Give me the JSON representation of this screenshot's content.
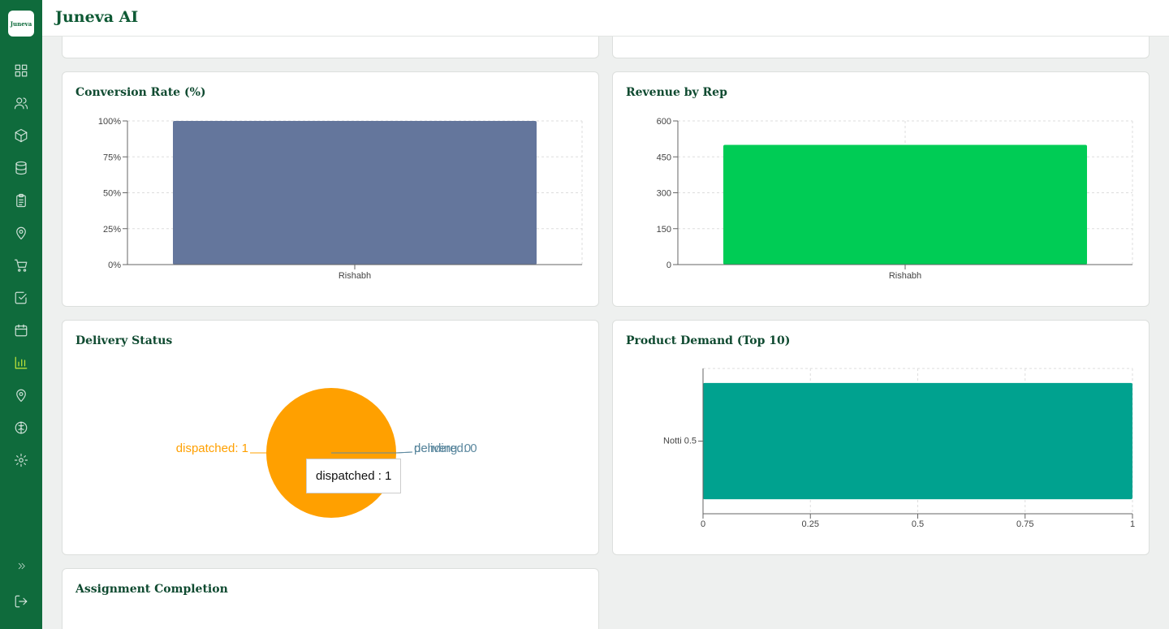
{
  "app": {
    "title": "Juneva AI",
    "logo_text": "Juneva"
  },
  "sidebar": {
    "items": [
      {
        "icon": "dashboard-icon"
      },
      {
        "icon": "users-icon"
      },
      {
        "icon": "package-icon"
      },
      {
        "icon": "database-icon"
      },
      {
        "icon": "clipboard-icon"
      },
      {
        "icon": "map-pin-icon"
      },
      {
        "icon": "cart-icon"
      },
      {
        "icon": "check-square-icon"
      },
      {
        "icon": "calendar-icon"
      },
      {
        "icon": "bar-chart-icon",
        "active": true
      },
      {
        "icon": "location-icon"
      },
      {
        "icon": "brain-icon"
      },
      {
        "icon": "settings-icon"
      }
    ],
    "expand_icon": "chevrons-right-icon",
    "logout_icon": "logout-icon"
  },
  "colors": {
    "sidebar": "#0f6b3c",
    "accent": "#c6e83a",
    "conversion_bar": "#64769c",
    "revenue_bar": "#00cc55",
    "demand_bar": "#00a28f",
    "pie_dispatched": "#ffa000",
    "pie_other": "#5e8aa0"
  },
  "cards": {
    "conversion": {
      "title": "Conversion Rate (%)"
    },
    "revenue": {
      "title": "Revenue by Rep"
    },
    "delivery": {
      "title": "Delivery Status",
      "tooltip": "dispatched : 1"
    },
    "demand": {
      "title": "Product Demand (Top 10)"
    },
    "assignment": {
      "title": "Assignment Completion"
    }
  },
  "chart_data": [
    {
      "id": "conversion",
      "type": "bar",
      "title": "Conversion Rate (%)",
      "categories": [
        "Rishabh"
      ],
      "values": [
        100
      ],
      "yticks": [
        "0%",
        "25%",
        "50%",
        "75%",
        "100%"
      ],
      "ylim": [
        0,
        100
      ],
      "grid": true
    },
    {
      "id": "revenue",
      "type": "bar",
      "title": "Revenue by Rep",
      "categories": [
        "Rishabh"
      ],
      "values": [
        500
      ],
      "yticks": [
        "0",
        "150",
        "300",
        "450",
        "600"
      ],
      "ylim": [
        0,
        600
      ],
      "grid": true
    },
    {
      "id": "delivery",
      "type": "pie",
      "title": "Delivery Status",
      "slices": [
        {
          "label": "dispatched",
          "value": 1,
          "text": "dispatched: 1"
        },
        {
          "label": "pending",
          "value": 0,
          "text": "pending: 0"
        },
        {
          "label": "delivered",
          "value": 0,
          "text": "delivered: 0"
        }
      ]
    },
    {
      "id": "demand",
      "type": "bar",
      "orientation": "horizontal",
      "title": "Product Demand (Top 10)",
      "categories": [
        "Notti 0.5"
      ],
      "values": [
        1
      ],
      "xticks": [
        "0",
        "0.25",
        "0.5",
        "0.75",
        "1"
      ],
      "xlim": [
        0,
        1
      ],
      "grid": true
    }
  ]
}
